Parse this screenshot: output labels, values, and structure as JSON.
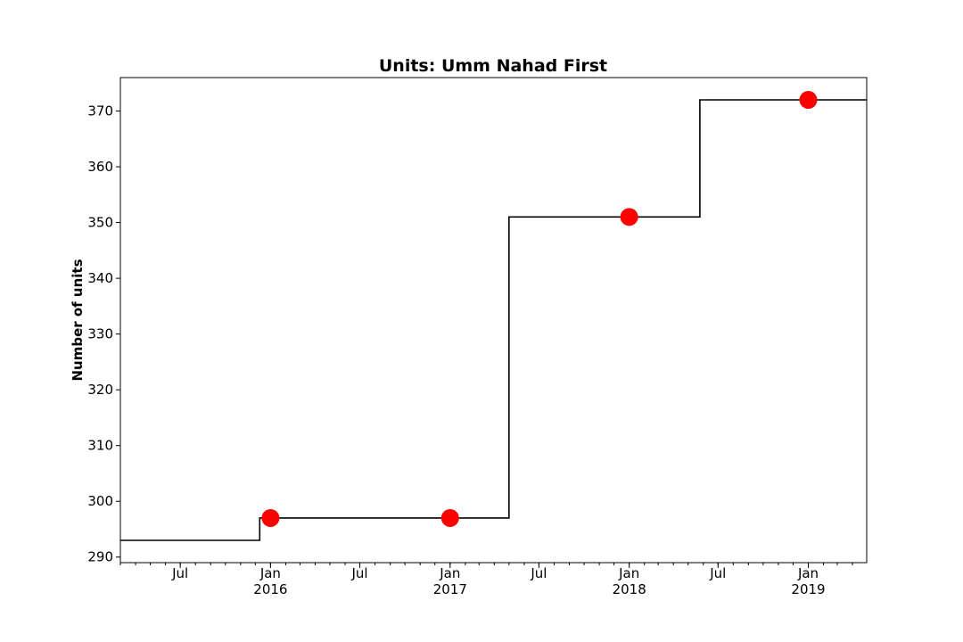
{
  "chart_data": {
    "type": "line",
    "title": "Units: Umm Nahad First",
    "xlabel": "",
    "ylabel": "Number of units",
    "step_series": {
      "x": [
        "2015-03-01",
        "2015-12-10",
        "2017-05-01",
        "2018-05-25",
        "2019-04-30"
      ],
      "y": [
        293,
        297,
        351,
        372,
        372
      ]
    },
    "markers": {
      "x": [
        "2016-01-01",
        "2017-01-01",
        "2018-01-01",
        "2019-01-01"
      ],
      "y": [
        297,
        297,
        351,
        372
      ],
      "color": "#ff0000"
    },
    "line_color": "#000000",
    "xlim": [
      "2015-03-01",
      "2019-04-30"
    ],
    "ylim": [
      289,
      376
    ],
    "yticks": [
      290,
      300,
      310,
      320,
      330,
      340,
      350,
      360,
      370
    ],
    "xticks": [
      {
        "date": "2015-07-01",
        "label": "Jul",
        "sublabel": ""
      },
      {
        "date": "2016-01-01",
        "label": "Jan",
        "sublabel": "2016"
      },
      {
        "date": "2016-07-01",
        "label": "Jul",
        "sublabel": ""
      },
      {
        "date": "2017-01-01",
        "label": "Jan",
        "sublabel": "2017"
      },
      {
        "date": "2017-07-01",
        "label": "Jul",
        "sublabel": ""
      },
      {
        "date": "2018-01-01",
        "label": "Jan",
        "sublabel": "2018"
      },
      {
        "date": "2018-07-01",
        "label": "Jul",
        "sublabel": ""
      },
      {
        "date": "2019-01-01",
        "label": "Jan",
        "sublabel": "2019"
      }
    ],
    "minor_ticks": "monthly",
    "grid": false,
    "legend": "none"
  }
}
